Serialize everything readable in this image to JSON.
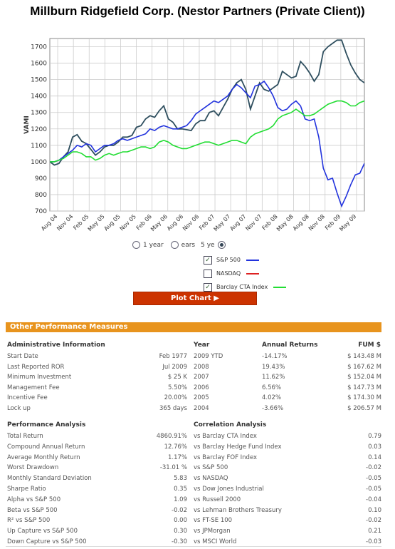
{
  "title": "Millburn Ridgefield Corp. (Nestor Partners (Private Client))",
  "chart_data": {
    "type": "line",
    "ylabel": "VAMI",
    "ylim": [
      700,
      1750
    ],
    "yticks": [
      700,
      800,
      900,
      1000,
      1100,
      1200,
      1300,
      1400,
      1500,
      1600,
      1700
    ],
    "xticks": [
      "Aug 04",
      "Nov 04",
      "Feb 05",
      "May 05",
      "Aug 05",
      "Nov 05",
      "Feb 06",
      "May 06",
      "Aug 06",
      "Nov 06",
      "Feb 07",
      "May 07",
      "Aug 07",
      "Nov 07",
      "Feb 08",
      "May 08",
      "Aug 08",
      "Nov 08",
      "Feb 09",
      "May 09"
    ],
    "grid": true,
    "series": [
      {
        "name": "Nestor Partners",
        "color": "#2f4f5f",
        "values": [
          1000,
          980,
          990,
          1030,
          1060,
          1150,
          1165,
          1125,
          1110,
          1075,
          1040,
          1060,
          1090,
          1100,
          1100,
          1120,
          1150,
          1150,
          1160,
          1210,
          1220,
          1260,
          1280,
          1270,
          1310,
          1340,
          1260,
          1240,
          1200,
          1200,
          1195,
          1190,
          1230,
          1250,
          1250,
          1300,
          1310,
          1280,
          1330,
          1380,
          1440,
          1480,
          1500,
          1440,
          1320,
          1400,
          1480,
          1440,
          1430,
          1450,
          1470,
          1550,
          1530,
          1510,
          1520,
          1610,
          1580,
          1540,
          1490,
          1530,
          1670,
          1700,
          1720,
          1740,
          1740,
          1660,
          1590,
          1540,
          1500,
          1480
        ]
      },
      {
        "name": "S&P 500",
        "color": "#2233dd",
        "values": [
          1000,
          1000,
          1010,
          1030,
          1050,
          1070,
          1100,
          1090,
          1110,
          1100,
          1060,
          1080,
          1100,
          1100,
          1110,
          1130,
          1140,
          1130,
          1140,
          1150,
          1160,
          1170,
          1200,
          1190,
          1210,
          1220,
          1210,
          1200,
          1200,
          1210,
          1220,
          1250,
          1290,
          1310,
          1330,
          1350,
          1370,
          1360,
          1380,
          1400,
          1440,
          1470,
          1450,
          1420,
          1390,
          1460,
          1470,
          1490,
          1450,
          1400,
          1330,
          1310,
          1320,
          1350,
          1370,
          1340,
          1260,
          1250,
          1260,
          1150,
          960,
          890,
          900,
          810,
          730,
          790,
          860,
          920,
          930,
          990
        ]
      },
      {
        "name": "Barclay CTA Index",
        "color": "#22dd33",
        "values": [
          1000,
          1000,
          1010,
          1020,
          1040,
          1060,
          1060,
          1050,
          1030,
          1030,
          1010,
          1020,
          1040,
          1050,
          1040,
          1050,
          1060,
          1060,
          1070,
          1080,
          1090,
          1090,
          1080,
          1090,
          1120,
          1130,
          1120,
          1100,
          1090,
          1080,
          1080,
          1090,
          1100,
          1110,
          1120,
          1120,
          1110,
          1100,
          1110,
          1120,
          1130,
          1130,
          1120,
          1110,
          1150,
          1170,
          1180,
          1190,
          1200,
          1220,
          1260,
          1280,
          1290,
          1300,
          1320,
          1300,
          1280,
          1280,
          1290,
          1310,
          1330,
          1350,
          1360,
          1370,
          1370,
          1360,
          1340,
          1340,
          1360,
          1370
        ]
      }
    ]
  },
  "range": {
    "opt1": "1 year",
    "opt2": "ears",
    "opt3": "5 ye"
  },
  "legend": [
    {
      "label": "S&P 500",
      "checked": "✓",
      "color": "#2233dd"
    },
    {
      "label": "NASDAQ",
      "checked": "",
      "color": "#dd2222"
    },
    {
      "label": "Barclay CTA Index",
      "checked": "✓",
      "color": "#22dd33"
    }
  ],
  "plot_button": "Plot Chart ▶",
  "section_title": "Other Performance Measures",
  "admin": {
    "header": "Administrative Information",
    "rows": [
      {
        "k": "Start Date",
        "v": "Feb 1977"
      },
      {
        "k": "Last Reported ROR",
        "v": "Jul 2009"
      },
      {
        "k": "Minimum Investment",
        "v": "$ 25 K"
      },
      {
        "k": "Management Fee",
        "v": "5.50%"
      },
      {
        "k": "Incentive Fee",
        "v": "20.00%"
      },
      {
        "k": "Lock up",
        "v": "365 days"
      }
    ]
  },
  "annual": {
    "h_year": "Year",
    "h_ret": "Annual Returns",
    "h_fum": "FUM $",
    "rows": [
      {
        "y": "2009 YTD",
        "r": "-14.17%",
        "f": "$ 143.48 M"
      },
      {
        "y": "2008",
        "r": "19.43%",
        "f": "$ 167.62 M"
      },
      {
        "y": "2007",
        "r": "11.62%",
        "f": "$ 152.04 M"
      },
      {
        "y": "2006",
        "r": "6.56%",
        "f": "$ 147.73 M"
      },
      {
        "y": "2005",
        "r": "4.02%",
        "f": "$ 174.30 M"
      },
      {
        "y": "2004",
        "r": "-3.66%",
        "f": "$ 206.57 M"
      }
    ]
  },
  "perf": {
    "header": "Performance Analysis",
    "rows": [
      {
        "k": "Total Return",
        "v": "4860.91%"
      },
      {
        "k": "Compound Annual Return",
        "v": "12.76%"
      },
      {
        "k": "Average Monthly Return",
        "v": "1.17%"
      },
      {
        "k": "Worst Drawdown",
        "v": "-31.01 %"
      },
      {
        "k": "Monthly Standard Deviation",
        "v": "5.83"
      },
      {
        "k": "Sharpe Ratio",
        "v": "0.35"
      },
      {
        "k": "Alpha vs S&P 500",
        "v": "1.09"
      },
      {
        "k": "Beta vs S&P 500",
        "v": "-0.02"
      },
      {
        "k": "R² vs S&P 500",
        "v": "0.00"
      },
      {
        "k": "Up Capture vs S&P 500",
        "v": "0.30"
      },
      {
        "k": "Down Capture vs S&P 500",
        "v": "-0.30"
      }
    ]
  },
  "corr": {
    "header": "Correlation Analysis",
    "rows": [
      {
        "k": "vs Barclay CTA Index",
        "v": "0.79"
      },
      {
        "k": "vs Barclay Hedge Fund Index",
        "v": "0.03"
      },
      {
        "k": "vs Barclay FOF Index",
        "v": "0.14"
      },
      {
        "k": "vs S&P 500",
        "v": "-0.02"
      },
      {
        "k": "vs NASDAQ",
        "v": "-0.05"
      },
      {
        "k": "vs Dow Jones Industrial",
        "v": "-0.05"
      },
      {
        "k": "vs Russell 2000",
        "v": "-0.04"
      },
      {
        "k": "vs Lehman Brothers Treasury",
        "v": "0.10"
      },
      {
        "k": "vs FT-SE 100",
        "v": "-0.02"
      },
      {
        "k": "vs JPMorgan",
        "v": "0.21"
      },
      {
        "k": "vs MSCI World",
        "v": "-0.03"
      }
    ]
  }
}
